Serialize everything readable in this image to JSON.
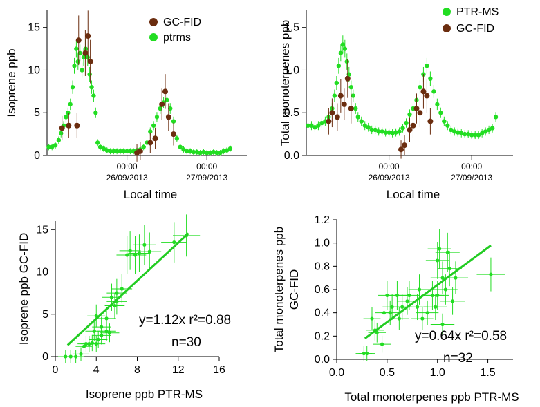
{
  "colors": {
    "ptrms": "#22dd22",
    "gcfid": "#6b2d0f",
    "fit": "#22cc22"
  },
  "chart_data": [
    {
      "id": "panel-a",
      "type": "scatter",
      "ylabel": "Isoprene ppb",
      "xlabel": "Local time",
      "xlim": [
        0,
        60
      ],
      "ylim": [
        0,
        17
      ],
      "yticks": [
        0,
        5,
        10,
        15
      ],
      "xticks": [
        {
          "x": 24,
          "time": "00:00",
          "date": "26/09/2013"
        },
        {
          "x": 48,
          "time": "00:00",
          "date": "27/09/2013"
        }
      ],
      "legend": [
        "GC-FID",
        "ptrms"
      ],
      "series": [
        {
          "name": "ptrms",
          "color": "#22dd22",
          "points": [
            [
              0.5,
              1.0
            ],
            [
              1.5,
              1.0
            ],
            [
              2.5,
              1.2
            ],
            [
              3.5,
              1.8
            ],
            [
              4.2,
              2.6
            ],
            [
              5.0,
              3.5
            ],
            [
              5.7,
              4.5
            ],
            [
              6.3,
              5.0
            ],
            [
              7,
              6.0
            ],
            [
              7.7,
              8.0
            ],
            [
              8.2,
              10.5
            ],
            [
              8.8,
              12.5
            ],
            [
              9.3,
              11.0
            ],
            [
              9.9,
              12.0
            ],
            [
              10.5,
              10.0
            ],
            [
              11.0,
              11.5
            ],
            [
              11.6,
              12.5
            ],
            [
              12.2,
              11.5
            ],
            [
              12.8,
              9.5
            ],
            [
              13.4,
              8.0
            ],
            [
              14.0,
              7.0
            ],
            [
              14.6,
              5.0
            ],
            [
              15.2,
              1.5
            ],
            [
              16,
              1.0
            ],
            [
              17,
              0.8
            ],
            [
              18,
              0.6
            ],
            [
              19,
              0.5
            ],
            [
              20,
              0.5
            ],
            [
              21,
              0.5
            ],
            [
              22,
              0.5
            ],
            [
              23,
              0.5
            ],
            [
              24,
              0.5
            ],
            [
              25,
              0.5
            ],
            [
              26,
              0.5
            ],
            [
              27,
              0.6
            ],
            [
              28,
              0.7
            ],
            [
              29,
              1.0
            ],
            [
              30,
              1.5
            ],
            [
              31,
              2.8
            ],
            [
              32,
              3.5
            ],
            [
              33,
              4.5
            ],
            [
              34,
              5.5
            ],
            [
              35,
              6.2
            ],
            [
              36,
              6.5
            ],
            [
              37,
              5.5
            ],
            [
              38,
              4.0
            ],
            [
              39,
              2.0
            ],
            [
              40,
              1.0
            ],
            [
              41,
              0.7
            ],
            [
              42,
              0.5
            ],
            [
              43,
              0.5
            ],
            [
              44,
              0.4
            ],
            [
              45,
              0.4
            ],
            [
              46,
              0.3
            ],
            [
              47,
              0.4
            ],
            [
              48,
              0.3
            ],
            [
              49,
              0.3
            ],
            [
              50,
              0.4
            ],
            [
              51,
              0.3
            ],
            [
              52,
              0.3
            ],
            [
              53,
              0.5
            ],
            [
              54,
              0.6
            ],
            [
              55,
              0.8
            ]
          ]
        },
        {
          "name": "GC-FID",
          "color": "#6b2d0f",
          "points": [
            [
              4.5,
              3.2
            ],
            [
              6.5,
              3.5
            ],
            [
              9.0,
              3.5
            ],
            [
              9.5,
              13.5
            ],
            [
              11.5,
              12.0
            ],
            [
              12.3,
              14.0
            ],
            [
              13.0,
              11.0
            ],
            [
              27,
              0.3
            ],
            [
              28,
              0.5
            ],
            [
              31,
              1.5
            ],
            [
              32.5,
              2.0
            ],
            [
              34.5,
              6.0
            ],
            [
              35.5,
              7.5
            ],
            [
              36.5,
              4.5
            ],
            [
              38,
              2.5
            ]
          ]
        }
      ]
    },
    {
      "id": "panel-b",
      "type": "scatter",
      "ylabel": "Total monoterpenes ppb",
      "xlabel": "Local time",
      "xlim": [
        0,
        60
      ],
      "ylim": [
        0,
        1.7
      ],
      "yticks": [
        0.0,
        0.5,
        1.0,
        1.5
      ],
      "xticks": [
        {
          "x": 24,
          "time": "00:00",
          "date": "26/09/2013"
        },
        {
          "x": 48,
          "time": "00:00",
          "date": "27/09/2013"
        }
      ],
      "legend": [
        "PTR-MS",
        "GC-FID"
      ],
      "series": [
        {
          "name": "PTR-MS",
          "color": "#22dd22",
          "points": [
            [
              0.5,
              0.35
            ],
            [
              1.5,
              0.35
            ],
            [
              2.5,
              0.33
            ],
            [
              3.5,
              0.35
            ],
            [
              4.5,
              0.38
            ],
            [
              5.5,
              0.4
            ],
            [
              6.5,
              0.45
            ],
            [
              7.5,
              0.55
            ],
            [
              8.2,
              0.7
            ],
            [
              8.8,
              0.85
            ],
            [
              9.4,
              1.05
            ],
            [
              10.0,
              1.2
            ],
            [
              10.6,
              1.3
            ],
            [
              11.2,
              1.25
            ],
            [
              11.8,
              1.1
            ],
            [
              12.4,
              0.95
            ],
            [
              13.0,
              0.8
            ],
            [
              13.6,
              0.7
            ],
            [
              14.3,
              0.55
            ],
            [
              15,
              0.45
            ],
            [
              16,
              0.4
            ],
            [
              17,
              0.35
            ],
            [
              18,
              0.33
            ],
            [
              19,
              0.3
            ],
            [
              20,
              0.3
            ],
            [
              21,
              0.28
            ],
            [
              22,
              0.28
            ],
            [
              23,
              0.27
            ],
            [
              24,
              0.27
            ],
            [
              25,
              0.26
            ],
            [
              26,
              0.27
            ],
            [
              27,
              0.28
            ],
            [
              28,
              0.32
            ],
            [
              29,
              0.38
            ],
            [
              30,
              0.48
            ],
            [
              31,
              0.55
            ],
            [
              32,
              0.65
            ],
            [
              33,
              0.8
            ],
            [
              34,
              0.95
            ],
            [
              35,
              1.05
            ],
            [
              36,
              0.9
            ],
            [
              37,
              0.75
            ],
            [
              38,
              0.6
            ],
            [
              39,
              0.5
            ],
            [
              40,
              0.4
            ],
            [
              41,
              0.35
            ],
            [
              42,
              0.3
            ],
            [
              43,
              0.28
            ],
            [
              44,
              0.27
            ],
            [
              45,
              0.26
            ],
            [
              46,
              0.25
            ],
            [
              47,
              0.25
            ],
            [
              48,
              0.24
            ],
            [
              49,
              0.24
            ],
            [
              50,
              0.24
            ],
            [
              51,
              0.26
            ],
            [
              52,
              0.28
            ],
            [
              53,
              0.3
            ],
            [
              54,
              0.32
            ],
            [
              55,
              0.45
            ]
          ]
        },
        {
          "name": "GC-FID",
          "color": "#6b2d0f",
          "points": [
            [
              6.5,
              0.4
            ],
            [
              7.5,
              0.5
            ],
            [
              9.0,
              0.45
            ],
            [
              10.0,
              0.7
            ],
            [
              11.0,
              0.6
            ],
            [
              12.0,
              0.9
            ],
            [
              13.0,
              0.55
            ],
            [
              27.5,
              0.07
            ],
            [
              28.5,
              0.12
            ],
            [
              30.0,
              0.3
            ],
            [
              31.0,
              0.35
            ],
            [
              32.0,
              0.55
            ],
            [
              33.0,
              0.5
            ],
            [
              34.0,
              0.75
            ],
            [
              35.0,
              0.7
            ],
            [
              36.0,
              0.4
            ]
          ]
        }
      ]
    },
    {
      "id": "panel-c",
      "type": "scatter",
      "ylabel": "Isoprene ppb GC-FID",
      "xlabel": "Isoprene ppb PTR-MS",
      "xlim": [
        0,
        16
      ],
      "ylim": [
        0,
        16
      ],
      "xticks": [
        0,
        4,
        8,
        12,
        16
      ],
      "yticks": [
        0,
        5,
        10,
        15
      ],
      "fit": {
        "slope": 1.12,
        "x_range": [
          1.2,
          13.0
        ]
      },
      "annotation_line1": "y=1.12x r²=0.88",
      "annotation_line2": "n=30",
      "points": [
        [
          1.0,
          0.0
        ],
        [
          1.5,
          0.0
        ],
        [
          2.0,
          0.0
        ],
        [
          2.5,
          0.3
        ],
        [
          2.8,
          1.2
        ],
        [
          3.0,
          1.5
        ],
        [
          3.3,
          1.5
        ],
        [
          3.6,
          1.6
        ],
        [
          4.0,
          1.5
        ],
        [
          4.2,
          2.0
        ],
        [
          4.5,
          2.5
        ],
        [
          3.8,
          3.0
        ],
        [
          4.0,
          4.8
        ],
        [
          4.5,
          3.5
        ],
        [
          5.0,
          3.0
        ],
        [
          5.3,
          2.8
        ],
        [
          5.5,
          7.0
        ],
        [
          5.8,
          6.0
        ],
        [
          6.0,
          6.5
        ],
        [
          6.5,
          8.0
        ],
        [
          6.0,
          7.5
        ],
        [
          7.0,
          12.0
        ],
        [
          7.3,
          12.5
        ],
        [
          7.8,
          12.0
        ],
        [
          8.2,
          12.2
        ],
        [
          8.7,
          13.2
        ],
        [
          9.2,
          12.4
        ],
        [
          11.6,
          13.5
        ],
        [
          12.8,
          14.3
        ],
        [
          5.0,
          4.5
        ]
      ]
    },
    {
      "id": "panel-d",
      "type": "scatter",
      "ylabel": "Total monoterpenes ppb\nGC-FID",
      "xlabel": "Total monoterpenes ppb PTR-MS",
      "xlim": [
        0,
        1.75
      ],
      "ylim": [
        0,
        1.2
      ],
      "xticks": [
        0.0,
        0.5,
        1.0,
        1.5
      ],
      "yticks": [
        0.0,
        0.2,
        0.4,
        0.6,
        0.8,
        1.0,
        1.2
      ],
      "fit": {
        "slope": 0.64,
        "x_range": [
          0.28,
          1.53
        ]
      },
      "annotation_line1": "y=0.64x r²=0.58",
      "annotation_line2": "n=32",
      "points": [
        [
          0.27,
          0.05
        ],
        [
          0.3,
          0.05
        ],
        [
          0.35,
          0.35
        ],
        [
          0.38,
          0.25
        ],
        [
          0.4,
          0.23
        ],
        [
          0.45,
          0.13
        ],
        [
          0.47,
          0.4
        ],
        [
          0.5,
          0.55
        ],
        [
          0.53,
          0.4
        ],
        [
          0.55,
          0.45
        ],
        [
          0.6,
          0.55
        ],
        [
          0.62,
          0.35
        ],
        [
          0.65,
          0.45
        ],
        [
          0.7,
          0.5
        ],
        [
          0.72,
          0.55
        ],
        [
          0.8,
          0.45
        ],
        [
          0.82,
          0.6
        ],
        [
          0.85,
          0.35
        ],
        [
          0.9,
          0.4
        ],
        [
          0.95,
          0.55
        ],
        [
          0.98,
          0.45
        ],
        [
          1.0,
          0.85
        ],
        [
          1.02,
          0.95
        ],
        [
          1.05,
          0.7
        ],
        [
          1.05,
          0.3
        ],
        [
          1.08,
          0.6
        ],
        [
          1.1,
          0.92
        ],
        [
          1.12,
          0.78
        ],
        [
          1.15,
          0.5
        ],
        [
          1.18,
          0.7
        ],
        [
          1.0,
          0.55
        ],
        [
          1.53,
          0.73
        ]
      ]
    }
  ]
}
